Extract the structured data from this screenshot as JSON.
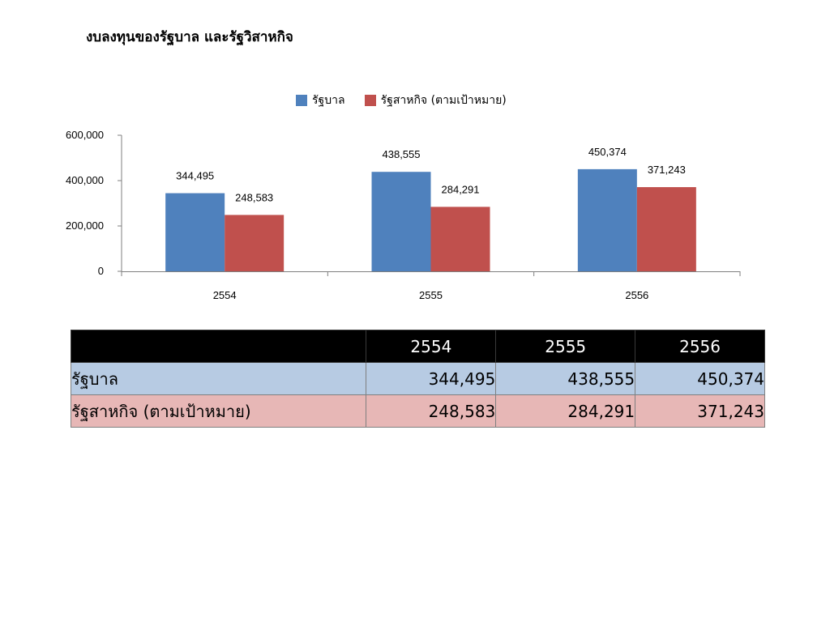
{
  "title": "งบลงทุนของรัฐบาล และรัฐวิสาหกิจ",
  "colors": {
    "government": "#4f81bd",
    "soe": "#c0504d",
    "table_header_bg": "#000000",
    "table_row_gov_bg": "#b7cbe3",
    "table_row_soe_bg": "#e7b7b6"
  },
  "chart_data": {
    "type": "bar",
    "title": "งบลงทุนของรัฐบาล และรัฐวิสาหกิจ",
    "categories": [
      "2554",
      "2555",
      "2556"
    ],
    "series": [
      {
        "name": "รัฐบาล",
        "values": [
          344495,
          438555,
          450374
        ],
        "labels": [
          "344,495",
          "438,555",
          "450,374"
        ],
        "color": "#4f81bd"
      },
      {
        "name": "รัฐสาหกิจ (ตามเป้าหมาย)",
        "values": [
          248583,
          284291,
          371243
        ],
        "labels": [
          "248,583",
          "284,291",
          "371,243"
        ],
        "color": "#c0504d"
      }
    ],
    "ylim": [
      0,
      600000
    ],
    "yticks": [
      0,
      200000,
      400000,
      600000
    ],
    "ytick_labels": [
      "0",
      "200,000",
      "400,000",
      "600,000"
    ],
    "legend": "top",
    "grid": false
  },
  "table": {
    "headers": [
      "",
      "2554",
      "2555",
      "2556"
    ],
    "rows": [
      {
        "label": "รัฐบาล",
        "values": [
          "344,495",
          "438,555",
          "450,374"
        ]
      },
      {
        "label": "รัฐสาหกิจ (ตามเป้าหมาย)",
        "values": [
          "248,583",
          "284,291",
          "371,243"
        ]
      }
    ]
  }
}
